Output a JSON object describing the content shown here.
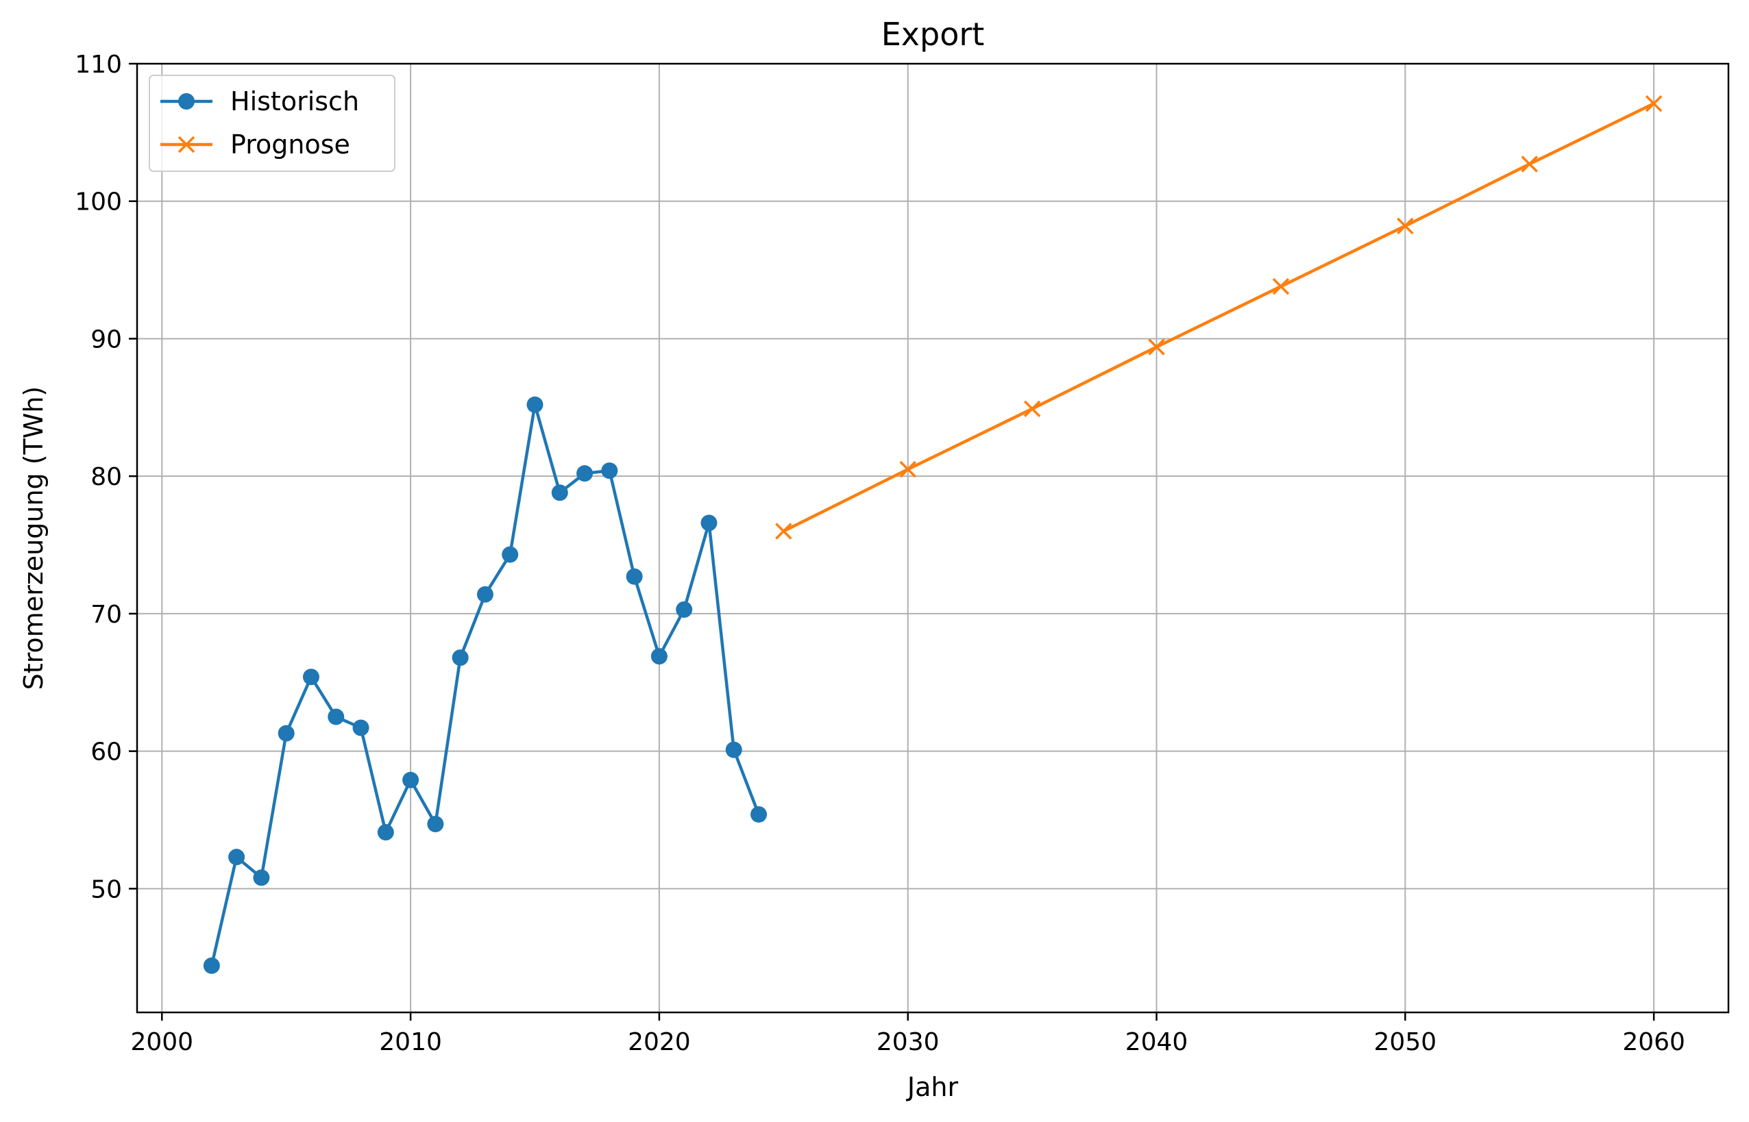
{
  "chart_data": {
    "type": "line",
    "title": "Export",
    "xlabel": "Jahr",
    "ylabel": "Stromerzeugung (TWh)",
    "xlim": [
      1999,
      2063
    ],
    "ylim": [
      41,
      110
    ],
    "xticks": [
      2000,
      2010,
      2020,
      2030,
      2040,
      2050,
      2060
    ],
    "yticks": [
      50,
      60,
      70,
      80,
      90,
      100,
      110
    ],
    "grid": true,
    "legend_position": "top-left",
    "series": [
      {
        "name": "Historisch",
        "color": "#1f77b4",
        "marker": "circle",
        "x": [
          2002,
          2003,
          2004,
          2005,
          2006,
          2007,
          2008,
          2009,
          2010,
          2011,
          2012,
          2013,
          2014,
          2015,
          2016,
          2017,
          2018,
          2019,
          2020,
          2021,
          2022,
          2023,
          2024
        ],
        "y": [
          44.4,
          52.3,
          50.8,
          61.3,
          65.4,
          62.5,
          61.7,
          54.1,
          57.9,
          54.7,
          66.8,
          71.4,
          74.3,
          85.2,
          78.8,
          80.2,
          80.4,
          72.7,
          66.9,
          70.3,
          76.6,
          60.1,
          55.4
        ]
      },
      {
        "name": "Prognose",
        "color": "#ff7f0e",
        "marker": "x",
        "x": [
          2025,
          2030,
          2035,
          2040,
          2045,
          2050,
          2055,
          2060
        ],
        "y": [
          76.0,
          80.5,
          84.9,
          89.4,
          93.8,
          98.2,
          102.7,
          107.1
        ]
      }
    ]
  }
}
